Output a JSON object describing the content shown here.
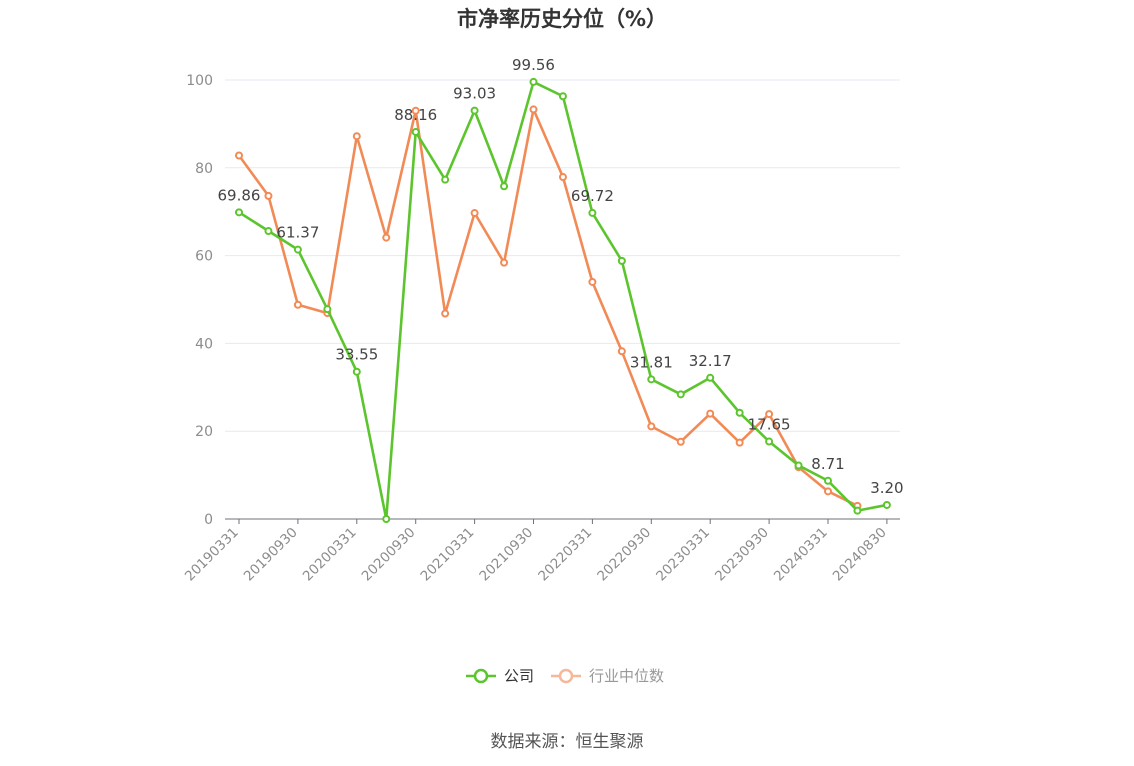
{
  "chart_data": {
    "type": "line",
    "title": "市净率历史分位（%）",
    "source_text": "数据来源：恒生聚源",
    "ylim": [
      0,
      100
    ],
    "yticks": [
      0,
      20,
      40,
      60,
      80,
      100
    ],
    "x": [
      "20190331",
      "20190630",
      "20190930",
      "20191231",
      "20200331",
      "20200630",
      "20200930",
      "20201231",
      "20210331",
      "20210630",
      "20210930",
      "20211231",
      "20220331",
      "20220630",
      "20220930",
      "20221231",
      "20230331",
      "20230630",
      "20230930",
      "20231231",
      "20240331",
      "20240630",
      "20240830"
    ],
    "xtick_labels": [
      "20190331",
      "20190930",
      "20200331",
      "20200930",
      "20210331",
      "20210930",
      "20220331",
      "20220930",
      "20230331",
      "20230930",
      "20240331",
      "20240830"
    ],
    "grid": true,
    "legend_position": "bottom-center",
    "series": [
      {
        "name": "公司",
        "color": "#5cc52e",
        "values": [
          69.86,
          65.6,
          61.37,
          47.8,
          33.55,
          0.0,
          88.16,
          77.3,
          93.03,
          75.8,
          99.56,
          96.3,
          69.72,
          58.8,
          31.81,
          28.4,
          32.17,
          24.2,
          17.65,
          12.2,
          8.71,
          1.9,
          3.2
        ],
        "labels": {
          "0": "69.86",
          "2": "61.37",
          "4": "33.55",
          "6": "88.16",
          "8": "93.03",
          "10": "99.56",
          "12": "69.72",
          "14": "31.81",
          "16": "32.17",
          "18": "17.65",
          "20": "8.71",
          "22": "3.20"
        }
      },
      {
        "name": "行业中位数",
        "color": "#f28a56",
        "values": [
          82.8,
          73.6,
          48.8,
          46.9,
          87.2,
          64.1,
          93.0,
          46.8,
          69.7,
          58.4,
          93.3,
          77.9,
          54.0,
          38.2,
          21.1,
          17.6,
          24.0,
          17.4,
          23.9,
          11.8,
          6.3,
          3.0,
          null
        ]
      }
    ]
  }
}
